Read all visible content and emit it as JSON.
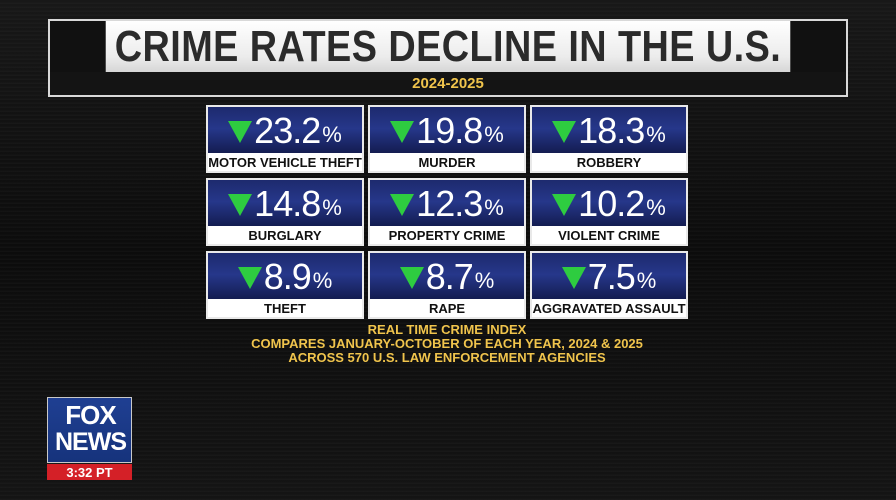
{
  "banner": {
    "title": "CRIME RATES DECLINE IN THE U.S.",
    "subtitle": "2024-2025"
  },
  "tiles": [
    {
      "value": "23.2",
      "unit": "%",
      "label": "MOTOR VEHICLE THEFT"
    },
    {
      "value": "19.8",
      "unit": "%",
      "label": "MURDER"
    },
    {
      "value": "18.3",
      "unit": "%",
      "label": "ROBBERY"
    },
    {
      "value": "14.8",
      "unit": "%",
      "label": "BURGLARY"
    },
    {
      "value": "12.3",
      "unit": "%",
      "label": "PROPERTY CRIME"
    },
    {
      "value": "10.2",
      "unit": "%",
      "label": "VIOLENT CRIME"
    },
    {
      "value": "8.9",
      "unit": "%",
      "label": "THEFT"
    },
    {
      "value": "8.7",
      "unit": "%",
      "label": "RAPE"
    },
    {
      "value": "7.5",
      "unit": "%",
      "label": "AGGRAVATED ASSAULT"
    }
  ],
  "footnote": {
    "line1": "REAL TIME CRIME INDEX",
    "line2": "COMPARES JANUARY-OCTOBER OF EACH YEAR, 2024 & 2025",
    "line3": "ACROSS 570 U.S. LAW ENFORCEMENT AGENCIES"
  },
  "logo": {
    "fox": "FOX",
    "news": "NEWS",
    "time": "3:32 PT"
  },
  "colors": {
    "accent_gold": "#f0c44c",
    "tile_blue": "#26378a",
    "down_arrow_green": "#2ecc40",
    "logo_red": "#d42027"
  },
  "icons": {
    "decline_indicator": "down-triangle-icon"
  }
}
